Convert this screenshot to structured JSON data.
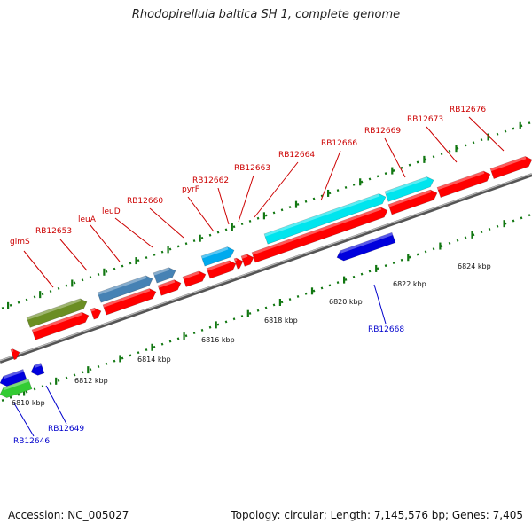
{
  "title": "Rhodopirellula baltica SH 1, complete genome",
  "footer": {
    "accession": "Accession: NC_005027",
    "summary": "Topology: circular; Length: 7,145,576 bp; Genes: 7,405"
  },
  "colors": {
    "forward_gene": "#ff0000",
    "reverse_gene": "#0000dd",
    "steelblue_gene": "#4682b4",
    "olive_gene": "#6b8e23",
    "cyan_gene": "#00e5ee",
    "sky_gene": "#00aaee",
    "green_gene": "#33cc33",
    "forward_label": "#cc0000",
    "reverse_label": "#0000cc",
    "backbone": "#777777",
    "tick": "#117711"
  },
  "scale_ticks": [
    {
      "label": "6810 kbp",
      "kb": 6810
    },
    {
      "label": "6812 kbp",
      "kb": 6812
    },
    {
      "label": "6814 kbp",
      "kb": 6814
    },
    {
      "label": "6816 kbp",
      "kb": 6816
    },
    {
      "label": "6818 kbp",
      "kb": 6818
    },
    {
      "label": "6820 kbp",
      "kb": 6820
    },
    {
      "label": "6822 kbp",
      "kb": 6822
    },
    {
      "label": "6824 kbp",
      "kb": 6824
    }
  ],
  "forward_labels": [
    "glmS",
    "RB12653",
    "leuA",
    "leuD",
    "RB12660",
    "pyrF",
    "RB12662",
    "RB12663",
    "RB12664",
    "RB12666",
    "RB12669",
    "RB12673",
    "RB12676"
  ],
  "reverse_labels": [
    "RB12646",
    "RB12649",
    "RB12668"
  ]
}
